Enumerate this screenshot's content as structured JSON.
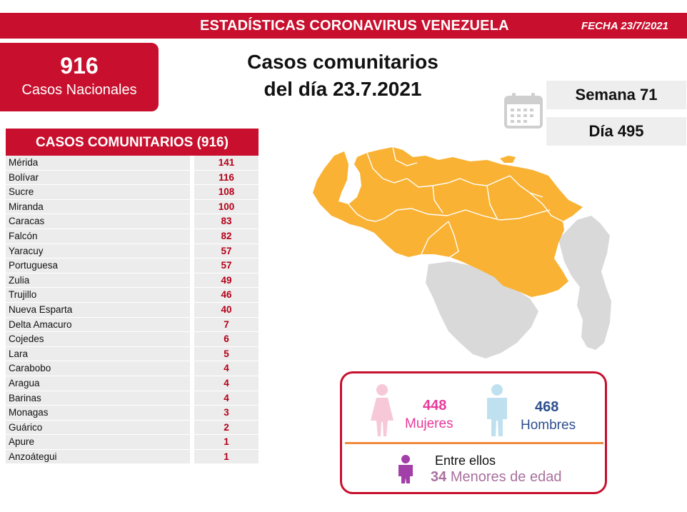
{
  "header": {
    "title": "ESTADÍSTICAS CORONAVIRUS VENEZUELA",
    "fecha": "FECHA 23/7/2021"
  },
  "total": {
    "value": "916",
    "label": "Casos Nacionales"
  },
  "headline": {
    "line1": "Casos comunitarios",
    "line2": "del día 23.7.2021"
  },
  "semana": "Semana 71",
  "dia": "Día 495",
  "table": {
    "title": "CASOS COMUNITARIOS (916)",
    "rows": [
      {
        "name": "Mérida",
        "value": "141"
      },
      {
        "name": "Bolívar",
        "value": "116"
      },
      {
        "name": "Sucre",
        "value": "108"
      },
      {
        "name": "Miranda",
        "value": "100"
      },
      {
        "name": "Caracas",
        "value": "83"
      },
      {
        "name": "Falcón",
        "value": "82"
      },
      {
        "name": "Yaracuy",
        "value": "57"
      },
      {
        "name": "Portuguesa",
        "value": "57"
      },
      {
        "name": "Zulia",
        "value": "49"
      },
      {
        "name": "Trujillo",
        "value": "46"
      },
      {
        "name": "Nueva Esparta",
        "value": "40"
      },
      {
        "name": "Delta Amacuro",
        "value": "7"
      },
      {
        "name": "Cojedes",
        "value": "6"
      },
      {
        "name": "Lara",
        "value": "5"
      },
      {
        "name": "Carabobo",
        "value": "4"
      },
      {
        "name": "Aragua",
        "value": "4"
      },
      {
        "name": "Barinas",
        "value": "4"
      },
      {
        "name": "Monagas",
        "value": "3"
      },
      {
        "name": "Guárico",
        "value": "2"
      },
      {
        "name": "Apure",
        "value": "1"
      },
      {
        "name": "Anzoátegui",
        "value": "1"
      }
    ]
  },
  "demographics": {
    "mujeres": {
      "value": "448",
      "label": "Mujeres",
      "color": "#e8399a"
    },
    "hombres": {
      "value": "468",
      "label": "Hombres",
      "color": "#2d4f8e"
    },
    "menores": {
      "intro": "Entre ellos",
      "value": "34",
      "label": "Menores de edad",
      "color": "#a23fa8"
    }
  },
  "colors": {
    "brand_red": "#c8102e",
    "map_active": "#f9b233",
    "map_inactive": "#d9d9d9"
  }
}
